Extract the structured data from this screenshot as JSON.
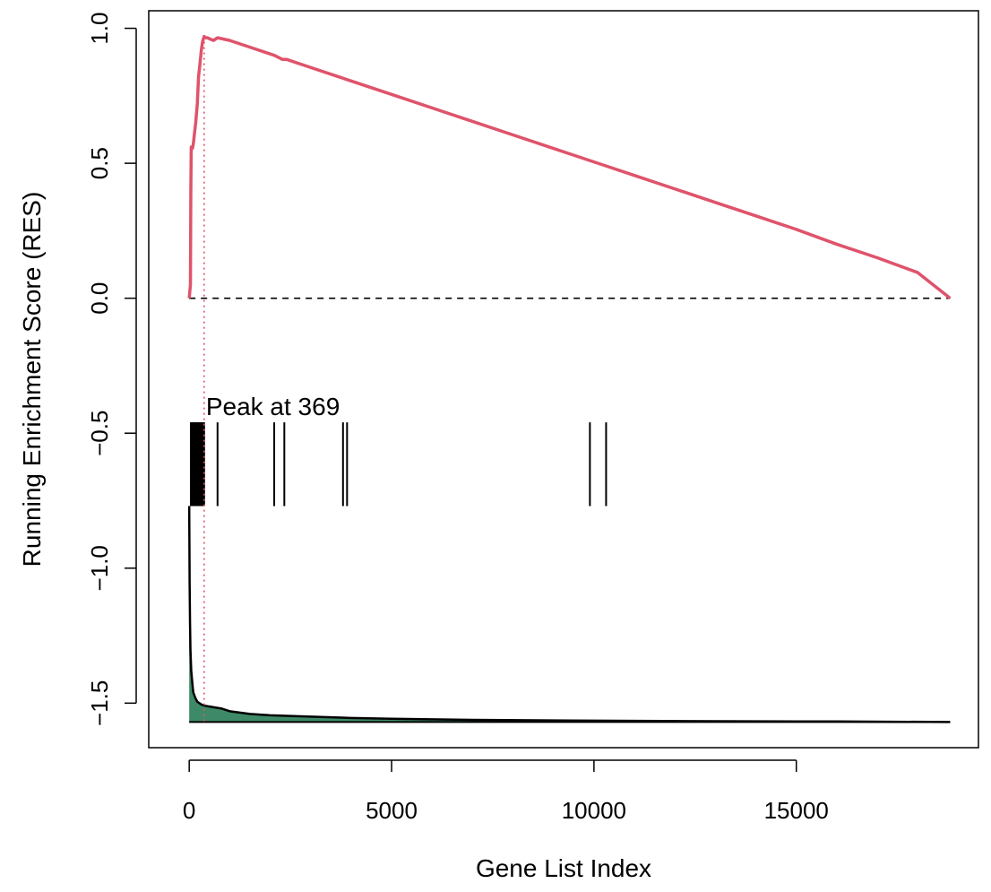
{
  "chart_data": {
    "type": "line",
    "title": "",
    "xlabel": "Gene List Index",
    "ylabel": "Running Enrichment Score (RES)",
    "xlim": [
      -1000,
      19500
    ],
    "ylim": [
      -1.665,
      1.065
    ],
    "x_ticks": [
      0,
      5000,
      10000,
      15000
    ],
    "x_tick_labels": [
      "0",
      "5000",
      "10000",
      "15000"
    ],
    "y_ticks": [
      -1.5,
      -1.0,
      -0.5,
      0.0,
      0.5,
      1.0
    ],
    "y_tick_labels": [
      "−1.5",
      "−1.0",
      "−0.5",
      "0.0",
      "0.5",
      "1.0"
    ],
    "grid": false,
    "legend": "none",
    "peak": {
      "index": 369,
      "label": "Peak at 369",
      "es": 0.97
    },
    "zero_line": 0.0,
    "colors": {
      "res_line": "#DF536B",
      "peak_line": "#DF536B",
      "metric_fill": "#3E8A68",
      "hits": "#000000"
    },
    "series": [
      {
        "x": [
          0,
          30,
          40,
          50,
          60,
          80,
          100,
          160,
          200,
          230,
          260,
          300,
          330,
          369,
          400,
          450,
          520,
          600,
          700,
          1000,
          1500,
          2000,
          2100,
          2300,
          2400,
          3000,
          3800,
          3900,
          5000,
          6000,
          7000,
          8000,
          9000,
          9900,
          10000,
          10300,
          11000,
          12000,
          13000,
          14000,
          15000,
          16000,
          17000,
          18000,
          18800
        ],
        "y": [
          0.0,
          0.05,
          0.4,
          0.56,
          0.555,
          0.555,
          0.57,
          0.65,
          0.72,
          0.82,
          0.86,
          0.92,
          0.95,
          0.97,
          0.965,
          0.965,
          0.96,
          0.955,
          0.965,
          0.955,
          0.93,
          0.905,
          0.9,
          0.885,
          0.885,
          0.855,
          0.815,
          0.81,
          0.755,
          0.705,
          0.655,
          0.605,
          0.555,
          0.51,
          0.505,
          0.49,
          0.455,
          0.405,
          0.355,
          0.305,
          0.255,
          0.2,
          0.15,
          0.095,
          0.0
        ]
      }
    ],
    "hits": [
      40,
      60,
      80,
      100,
      120,
      140,
      160,
      180,
      200,
      220,
      240,
      260,
      280,
      300,
      320,
      340,
      369,
      700,
      2100,
      2350,
      3800,
      3900,
      9900,
      10300
    ],
    "hits_ymin": -0.77,
    "hits_ymax": -0.46,
    "metric": {
      "baseline": -1.57,
      "x": [
        0,
        10,
        20,
        30,
        50,
        80,
        100,
        150,
        200,
        300,
        400,
        600,
        800,
        1000,
        1500,
        2000,
        3000,
        4000,
        5000,
        7000,
        10000,
        13000,
        16000,
        18800
      ],
      "y": [
        -0.77,
        -1.05,
        -1.2,
        -1.3,
        -1.38,
        -1.43,
        -1.46,
        -1.48,
        -1.495,
        -1.505,
        -1.51,
        -1.515,
        -1.52,
        -1.53,
        -1.54,
        -1.545,
        -1.55,
        -1.555,
        -1.558,
        -1.562,
        -1.565,
        -1.567,
        -1.568,
        -1.57
      ]
    }
  }
}
